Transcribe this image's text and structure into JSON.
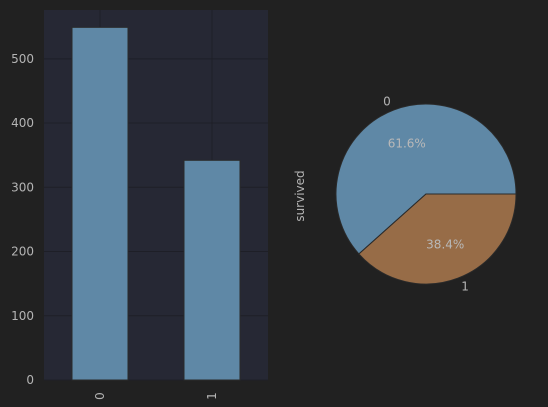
{
  "colors": {
    "background": "#212121",
    "plot_area": "#262834",
    "grid": "#1e1f27",
    "bar": "#5f88a6",
    "pie_0": "#5f88a6",
    "pie_1": "#976c47",
    "edge": "#2a2a2a",
    "text": "#b4b4b4"
  },
  "chart_data": [
    {
      "type": "bar",
      "categories": [
        "0",
        "1"
      ],
      "values": [
        549,
        342
      ],
      "yticks": [
        "0",
        "100",
        "200",
        "300",
        "400",
        "500"
      ],
      "ylim": [
        0,
        576
      ],
      "grid": true,
      "xtick_rotation": "vertical"
    },
    {
      "type": "pie",
      "labels": [
        "0",
        "1"
      ],
      "values": [
        61.6,
        38.4
      ],
      "percent_labels": [
        "61.6%",
        "38.4%"
      ],
      "ylabel": "survived"
    }
  ]
}
